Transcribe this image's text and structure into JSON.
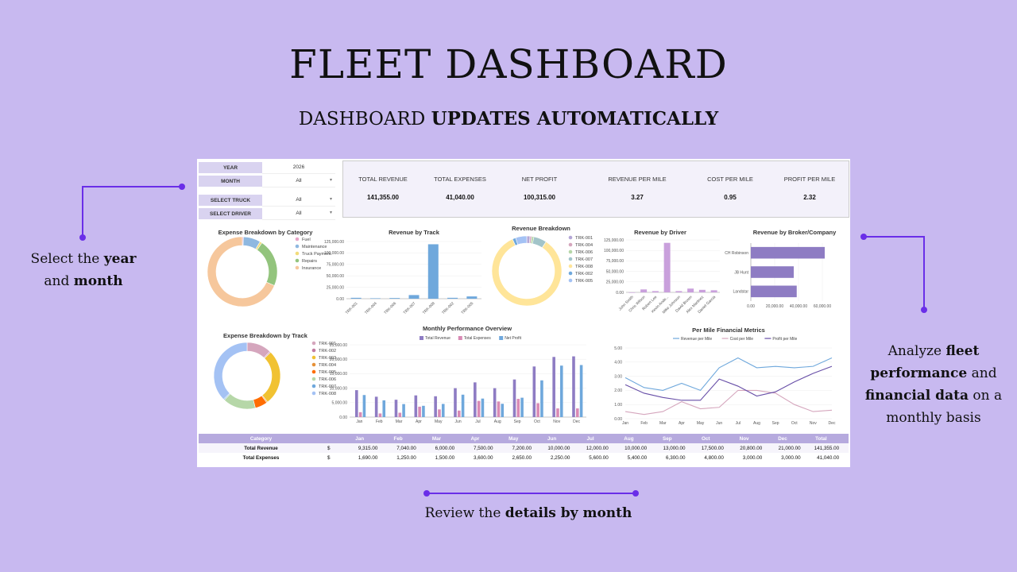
{
  "header": {
    "title": "FLEET DASHBOARD",
    "subtitle_prefix": "DASHBOARD ",
    "subtitle_bold": "UPDATES AUTOMATICALLY"
  },
  "callouts": {
    "left": {
      "line1_prefix": "Select the ",
      "line1_bold": "year",
      "line2_prefix": "and ",
      "line2_bold": "month"
    },
    "right": {
      "line1_prefix": "Analyze ",
      "line1_bold": "fleet",
      "line2_bold": "performance",
      "line2_suffix": " and",
      "line3_bold": "financial data",
      "line3_suffix": " on a",
      "line4": "monthly basis"
    },
    "bottom": {
      "prefix": "Review the ",
      "bold": "details by month"
    }
  },
  "colors": {
    "background": "#c8b9f0",
    "accent": "#6a2ee8",
    "bar_purple": "#9b7bd0",
    "bar_pink": "#d98ab5",
    "bar_blue": "#6fa8dc"
  },
  "filters": [
    {
      "label": "YEAR",
      "value": "2026",
      "dropdown": false
    },
    {
      "label": "MONTH",
      "value": "All",
      "dropdown": true
    },
    {
      "label": "SELECT TRUCK",
      "value": "All",
      "dropdown": true
    },
    {
      "label": "SELECT DRIVER",
      "value": "All",
      "dropdown": true
    }
  ],
  "kpis": [
    {
      "label": "TOTAL REVENUE",
      "value": "141,355.00"
    },
    {
      "label": "TOTAL EXPENSES",
      "value": "41,040.00"
    },
    {
      "label": "NET PROFIT",
      "value": "100,315.00"
    },
    {
      "label": "REVENUE PER MILE",
      "value": "3.27"
    },
    {
      "label": "COST PER MILE",
      "value": "0.95"
    },
    {
      "label": "PROFIT PER MILE",
      "value": "2.32"
    }
  ],
  "chart_data": [
    {
      "id": "expense-category",
      "type": "pie",
      "title": "Expense Breakdown by Category",
      "labels": [
        "Fuel",
        "Maintenance",
        "Truck Payment",
        "Repairs",
        "Insurance"
      ],
      "values": [
        0.5,
        8,
        1,
        22,
        68.5
      ],
      "colors": [
        "#e8a5c8",
        "#8fb8e0",
        "#f2dc7a",
        "#93c47d",
        "#f6c79c"
      ]
    },
    {
      "id": "revenue-truck",
      "type": "bar",
      "title": "Revenue by Track",
      "categories": [
        "TRK-001",
        "TRK-004",
        "TRK-006",
        "TRK-007",
        "TRK-008",
        "TRK-002",
        "TRK-005"
      ],
      "values": [
        2000,
        1000,
        1500,
        8000,
        119000,
        2000,
        5000
      ],
      "ylim": [
        0,
        125000
      ],
      "yticks": [
        "0.00",
        "25,000.00",
        "50,000.00",
        "75,000.00",
        "100,000.00",
        "125,000.00"
      ]
    },
    {
      "id": "revenue-breakdown",
      "type": "pie",
      "title": "Revenue Breakdown",
      "labels": [
        "TRK-001",
        "TRK-004",
        "TRK-006",
        "TRK-007",
        "TRK-008",
        "TRK-002",
        "TRK-005"
      ],
      "values": [
        1.5,
        0.8,
        1,
        6,
        84,
        1.5,
        5.2
      ],
      "colors": [
        "#b4a7d6",
        "#d5a6bd",
        "#b6d7a8",
        "#a2c4c9",
        "#ffe599",
        "#6fa8dc",
        "#a4c2f4"
      ]
    },
    {
      "id": "revenue-driver",
      "type": "bar",
      "title": "Revenue by Driver",
      "categories": [
        "John Smith",
        "Chris Wilson",
        "Robert Lee",
        "Kevin Ande...",
        "Mike Johnson",
        "David Brown",
        "Alex Martinez",
        "Daniel Garcia"
      ],
      "values": [
        0,
        7000,
        3000,
        118000,
        3000,
        9000,
        6000,
        5000
      ],
      "ylim": [
        0,
        125000
      ],
      "yticks": [
        "0.00",
        "25,000.00",
        "50,000.00",
        "75,000.00",
        "100,000.00",
        "125,000.00"
      ]
    },
    {
      "id": "revenue-broker",
      "type": "bar",
      "title": "Revenue by Broker/Company",
      "categories": [
        "CH Robinson",
        "JB Hunt",
        "Landstar"
      ],
      "values": [
        62000,
        36000,
        38500
      ],
      "xlim": [
        0,
        60000
      ],
      "xticks": [
        "0.00",
        "20,000.00",
        "40,000.00",
        "60,000.00"
      ]
    },
    {
      "id": "expense-truck",
      "type": "pie",
      "title": "Expense Breakdown by Track",
      "labels": [
        "TRK-001",
        "TRK-002",
        "TRK-003",
        "TRK-004",
        "TRK-005",
        "TRK-006",
        "TRK-007",
        "TRK-008"
      ],
      "values": [
        12,
        0.5,
        27,
        0.5,
        6,
        16,
        0.5,
        37.5
      ],
      "colors": [
        "#d5a6bd",
        "#c27ba0",
        "#f1c232",
        "#e69138",
        "#ff6d01",
        "#b6d7a8",
        "#6fa8dc",
        "#a4c2f4"
      ]
    },
    {
      "id": "monthly-performance",
      "type": "bar",
      "title": "Monthly Performance Overview",
      "categories": [
        "Jan",
        "Feb",
        "Mar",
        "Apr",
        "May",
        "Jun",
        "Jul",
        "Aug",
        "Sep",
        "Oct",
        "Nov",
        "Dec"
      ],
      "series": [
        {
          "name": "Total Revenue",
          "values": [
            9315,
            7040,
            6000,
            7500,
            7200,
            10000,
            12000,
            10000,
            13000,
            17500,
            20800,
            21000
          ]
        },
        {
          "name": "Total Expenses",
          "values": [
            1690,
            1250,
            1500,
            3600,
            2650,
            2250,
            5600,
            5400,
            6300,
            4800,
            3000,
            3000
          ]
        },
        {
          "name": "Net Profit",
          "values": [
            7625,
            5790,
            4500,
            3900,
            4550,
            7750,
            6400,
            4600,
            6700,
            12700,
            17800,
            18000
          ]
        }
      ],
      "ylim": [
        0,
        25000
      ],
      "yticks": [
        "0.00",
        "5,000.00",
        "10,000.00",
        "15,000.00",
        "20,000.00",
        "25,000.00"
      ]
    },
    {
      "id": "per-mile",
      "type": "line",
      "title": "Per Mile Financial Metrics",
      "categories": [
        "Jan",
        "Feb",
        "Mar",
        "Apr",
        "May",
        "Jun",
        "Jul",
        "Aug",
        "Sep",
        "Oct",
        "Nov",
        "Dec"
      ],
      "series": [
        {
          "name": "Revenue per Mile",
          "values": [
            2.9,
            2.2,
            2.0,
            2.5,
            2.0,
            3.6,
            4.3,
            3.6,
            3.7,
            3.6,
            3.7,
            4.3
          ]
        },
        {
          "name": "Cost per Mile",
          "values": [
            0.5,
            0.3,
            0.5,
            1.2,
            0.7,
            0.8,
            2.0,
            2.0,
            1.8,
            1.0,
            0.5,
            0.6
          ]
        },
        {
          "name": "Profit per Mile",
          "values": [
            2.4,
            1.8,
            1.5,
            1.3,
            1.3,
            2.8,
            2.3,
            1.6,
            1.9,
            2.6,
            3.2,
            3.7
          ]
        }
      ],
      "ylim": [
        0,
        5
      ],
      "yticks": [
        "0.00",
        "1.00",
        "2.00",
        "3.00",
        "4.00",
        "5.00"
      ]
    }
  ],
  "table": {
    "headers": [
      "Category",
      "Jan",
      "Feb",
      "Mar",
      "Apr",
      "May",
      "Jun",
      "Jul",
      "Aug",
      "Sep",
      "Oct",
      "Nov",
      "Dec",
      "Total"
    ],
    "rows": [
      {
        "label": "Total Revenue",
        "currency": "$",
        "values": [
          "9,315.00",
          "7,040.00",
          "6,000.00",
          "7,500.00",
          "7,200.00",
          "10,000.00",
          "12,000.00",
          "10,000.00",
          "13,000.00",
          "17,500.00",
          "20,800.00",
          "21,000.00",
          "141,355.00"
        ]
      },
      {
        "label": "Total Expenses",
        "currency": "$",
        "values": [
          "1,690.00",
          "1,250.00",
          "1,500.00",
          "3,600.00",
          "2,650.00",
          "2,250.00",
          "5,600.00",
          "5,400.00",
          "6,300.00",
          "4,800.00",
          "3,000.00",
          "3,000.00",
          "41,040.00"
        ]
      }
    ]
  }
}
